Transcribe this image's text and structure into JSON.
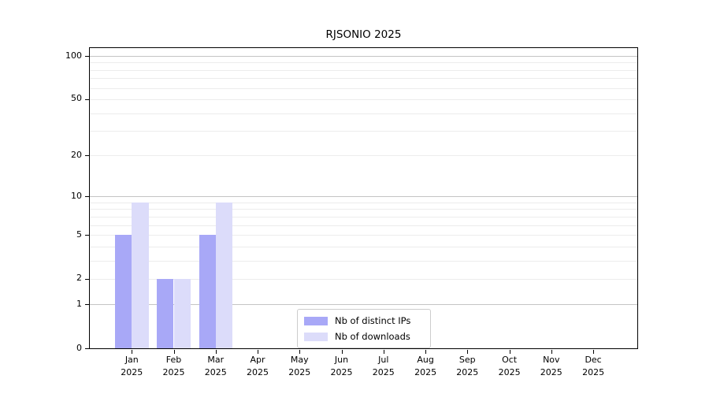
{
  "chart_data": {
    "type": "bar",
    "title": "RJSONIO 2025",
    "x_ticks": [
      {
        "month": "Jan",
        "year": "2025"
      },
      {
        "month": "Feb",
        "year": "2025"
      },
      {
        "month": "Mar",
        "year": "2025"
      },
      {
        "month": "Apr",
        "year": "2025"
      },
      {
        "month": "May",
        "year": "2025"
      },
      {
        "month": "Jun",
        "year": "2025"
      },
      {
        "month": "Jul",
        "year": "2025"
      },
      {
        "month": "Aug",
        "year": "2025"
      },
      {
        "month": "Sep",
        "year": "2025"
      },
      {
        "month": "Oct",
        "year": "2025"
      },
      {
        "month": "Nov",
        "year": "2025"
      },
      {
        "month": "Dec",
        "year": "2025"
      }
    ],
    "series": [
      {
        "name": "Nb of distinct IPs",
        "key": "distinct-ips",
        "color": "#a8a8f7",
        "values": [
          5,
          2,
          5,
          0,
          0,
          0,
          0,
          0,
          0,
          0,
          0,
          0
        ]
      },
      {
        "name": "Nb of downloads",
        "key": "downloads",
        "color": "#dcdcfa",
        "values": [
          9,
          2,
          9,
          0,
          0,
          0,
          0,
          0,
          0,
          0,
          0,
          0
        ]
      }
    ],
    "y_axis": {
      "scale": "log1p",
      "tick_values": [
        0,
        1,
        2,
        5,
        10,
        20,
        50,
        100
      ],
      "major_gridlines": [
        1,
        10,
        100
      ],
      "minor_gridlines": [
        2,
        3,
        4,
        5,
        6,
        7,
        8,
        9,
        20,
        30,
        40,
        50,
        60,
        70,
        80,
        90
      ],
      "ylim": [
        0,
        113
      ]
    },
    "legend_position": "bottom-center",
    "colors": {
      "major_grid": "#c4c4c4",
      "minor_grid": "#ececec",
      "spine": "#000000",
      "background": "#ffffff"
    }
  }
}
